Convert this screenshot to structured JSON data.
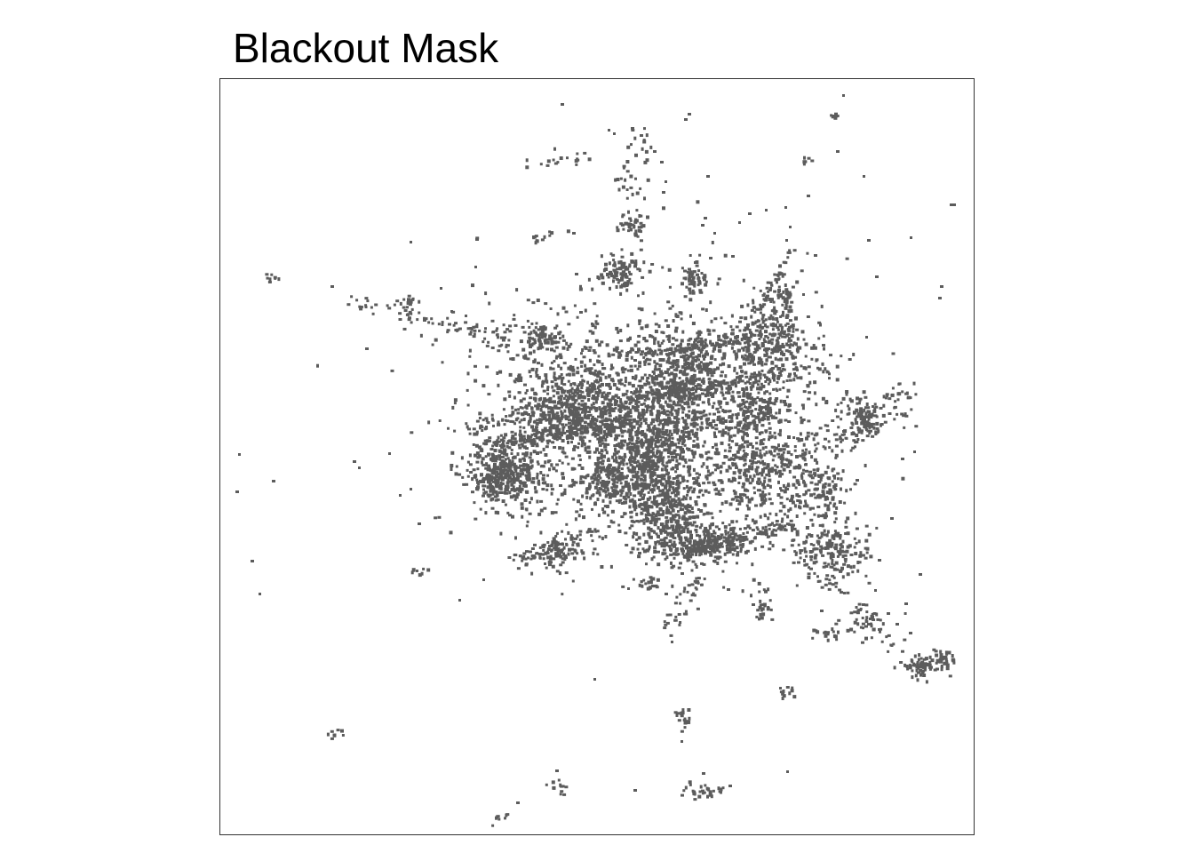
{
  "title": "Blackout Mask",
  "colors": {
    "mask": "#5c5c5c",
    "frame": "#333333",
    "background": "#ffffff"
  }
}
